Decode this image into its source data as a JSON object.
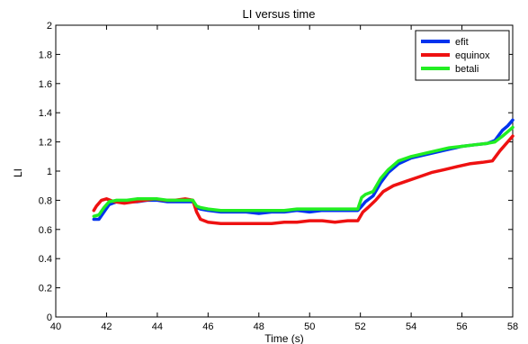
{
  "chart_data": {
    "type": "line",
    "title": "LI versus time",
    "xlabel": "Time (s)",
    "ylabel": "LI",
    "xlim": [
      40,
      58
    ],
    "ylim": [
      0,
      2
    ],
    "xticks": [
      40,
      42,
      44,
      46,
      48,
      50,
      52,
      54,
      56,
      58
    ],
    "yticks": [
      0,
      0.2,
      0.4,
      0.6,
      0.8,
      1,
      1.2,
      1.4,
      1.6,
      1.8,
      2
    ],
    "xtick_labels": [
      "40",
      "42",
      "44",
      "46",
      "48",
      "50",
      "52",
      "54",
      "56",
      "58"
    ],
    "ytick_labels": [
      "0",
      "0.2",
      "0.4",
      "0.6",
      "0.8",
      "1",
      "1.2",
      "1.4",
      "1.6",
      "1.8",
      "2"
    ],
    "grid": false,
    "legend_position": "top-right",
    "series": [
      {
        "name": "efit",
        "color": "#0033ee",
        "points": [
          [
            41.5,
            0.67
          ],
          [
            41.7,
            0.67
          ],
          [
            41.9,
            0.72
          ],
          [
            42.1,
            0.77
          ],
          [
            42.4,
            0.79
          ],
          [
            42.8,
            0.79
          ],
          [
            43.2,
            0.79
          ],
          [
            43.6,
            0.8
          ],
          [
            44.0,
            0.8
          ],
          [
            44.4,
            0.79
          ],
          [
            44.8,
            0.79
          ],
          [
            45.2,
            0.79
          ],
          [
            45.4,
            0.79
          ],
          [
            45.55,
            0.75
          ],
          [
            45.7,
            0.74
          ],
          [
            46.0,
            0.73
          ],
          [
            46.5,
            0.72
          ],
          [
            47.0,
            0.72
          ],
          [
            47.5,
            0.72
          ],
          [
            48.0,
            0.71
          ],
          [
            48.5,
            0.72
          ],
          [
            49.0,
            0.72
          ],
          [
            49.5,
            0.73
          ],
          [
            50.0,
            0.72
          ],
          [
            50.5,
            0.73
          ],
          [
            51.0,
            0.73
          ],
          [
            51.5,
            0.73
          ],
          [
            51.9,
            0.73
          ],
          [
            52.05,
            0.76
          ],
          [
            52.2,
            0.79
          ],
          [
            52.5,
            0.83
          ],
          [
            52.8,
            0.92
          ],
          [
            53.1,
            0.99
          ],
          [
            53.5,
            1.05
          ],
          [
            54.0,
            1.09
          ],
          [
            54.5,
            1.11
          ],
          [
            55.0,
            1.13
          ],
          [
            55.5,
            1.15
          ],
          [
            56.0,
            1.17
          ],
          [
            56.5,
            1.18
          ],
          [
            57.0,
            1.19
          ],
          [
            57.3,
            1.21
          ],
          [
            57.6,
            1.28
          ],
          [
            57.8,
            1.31
          ],
          [
            58.0,
            1.35
          ]
        ]
      },
      {
        "name": "equinox",
        "color": "#ee1111",
        "points": [
          [
            41.5,
            0.73
          ],
          [
            41.6,
            0.76
          ],
          [
            41.8,
            0.8
          ],
          [
            42.0,
            0.81
          ],
          [
            42.3,
            0.79
          ],
          [
            42.7,
            0.78
          ],
          [
            43.1,
            0.79
          ],
          [
            43.5,
            0.8
          ],
          [
            43.9,
            0.81
          ],
          [
            44.3,
            0.8
          ],
          [
            44.7,
            0.8
          ],
          [
            45.1,
            0.81
          ],
          [
            45.4,
            0.8
          ],
          [
            45.55,
            0.72
          ],
          [
            45.7,
            0.67
          ],
          [
            46.0,
            0.65
          ],
          [
            46.5,
            0.64
          ],
          [
            47.0,
            0.64
          ],
          [
            47.5,
            0.64
          ],
          [
            48.0,
            0.64
          ],
          [
            48.5,
            0.64
          ],
          [
            49.0,
            0.65
          ],
          [
            49.5,
            0.65
          ],
          [
            50.0,
            0.66
          ],
          [
            50.5,
            0.66
          ],
          [
            51.0,
            0.65
          ],
          [
            51.5,
            0.66
          ],
          [
            51.9,
            0.66
          ],
          [
            52.1,
            0.72
          ],
          [
            52.3,
            0.75
          ],
          [
            52.6,
            0.8
          ],
          [
            52.9,
            0.86
          ],
          [
            53.3,
            0.9
          ],
          [
            53.8,
            0.93
          ],
          [
            54.3,
            0.96
          ],
          [
            54.8,
            0.99
          ],
          [
            55.3,
            1.01
          ],
          [
            55.8,
            1.03
          ],
          [
            56.3,
            1.05
          ],
          [
            56.8,
            1.06
          ],
          [
            57.2,
            1.07
          ],
          [
            57.5,
            1.14
          ],
          [
            57.8,
            1.2
          ],
          [
            58.0,
            1.24
          ]
        ]
      },
      {
        "name": "betali",
        "color": "#22ee22",
        "points": [
          [
            41.5,
            0.69
          ],
          [
            41.7,
            0.7
          ],
          [
            41.9,
            0.75
          ],
          [
            42.1,
            0.79
          ],
          [
            42.4,
            0.8
          ],
          [
            42.8,
            0.8
          ],
          [
            43.2,
            0.81
          ],
          [
            43.6,
            0.81
          ],
          [
            44.0,
            0.81
          ],
          [
            44.4,
            0.8
          ],
          [
            44.8,
            0.8
          ],
          [
            45.2,
            0.8
          ],
          [
            45.4,
            0.8
          ],
          [
            45.55,
            0.76
          ],
          [
            45.7,
            0.75
          ],
          [
            46.0,
            0.74
          ],
          [
            46.5,
            0.73
          ],
          [
            47.0,
            0.73
          ],
          [
            47.5,
            0.73
          ],
          [
            48.0,
            0.73
          ],
          [
            48.5,
            0.73
          ],
          [
            49.0,
            0.73
          ],
          [
            49.5,
            0.74
          ],
          [
            50.0,
            0.74
          ],
          [
            50.5,
            0.74
          ],
          [
            51.0,
            0.74
          ],
          [
            51.5,
            0.74
          ],
          [
            51.9,
            0.74
          ],
          [
            52.05,
            0.82
          ],
          [
            52.2,
            0.84
          ],
          [
            52.5,
            0.86
          ],
          [
            52.8,
            0.95
          ],
          [
            53.1,
            1.01
          ],
          [
            53.5,
            1.07
          ],
          [
            54.0,
            1.1
          ],
          [
            54.5,
            1.12
          ],
          [
            55.0,
            1.14
          ],
          [
            55.5,
            1.16
          ],
          [
            56.0,
            1.17
          ],
          [
            56.5,
            1.18
          ],
          [
            57.0,
            1.19
          ],
          [
            57.3,
            1.2
          ],
          [
            57.6,
            1.24
          ],
          [
            57.8,
            1.27
          ],
          [
            58.0,
            1.3
          ]
        ]
      }
    ]
  }
}
